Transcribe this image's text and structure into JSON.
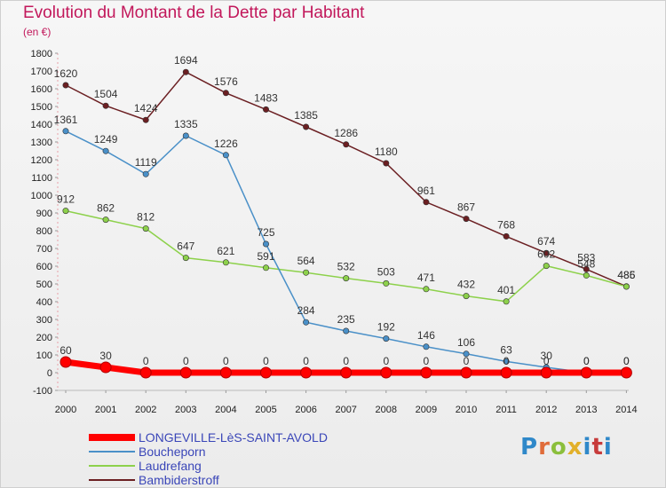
{
  "title": "Evolution du Montant de la Dette par Habitant",
  "subtitle": "(en €)",
  "chart_data": {
    "type": "line",
    "x": [
      "2000",
      "2001",
      "2002",
      "2003",
      "2004",
      "2005",
      "2006",
      "2007",
      "2008",
      "2009",
      "2010",
      "2011",
      "2012",
      "2013",
      "2014"
    ],
    "ylim": [
      -100,
      1800
    ],
    "yticks": [
      "-100",
      "0",
      "100",
      "200",
      "300",
      "400",
      "500",
      "600",
      "700",
      "800",
      "900",
      "1000",
      "1100",
      "1200",
      "1300",
      "1400",
      "1500",
      "1600",
      "1700",
      "1800"
    ],
    "grid": false,
    "legend_position": "bottom-left",
    "series": [
      {
        "name": "LONGEVILLE-LèS-SAINT-AVOLD",
        "color": "#ff0000",
        "values": [
          60,
          30,
          0,
          0,
          0,
          0,
          0,
          0,
          0,
          0,
          0,
          0,
          0,
          0,
          0
        ],
        "labels": [
          "60",
          "30",
          "0",
          "0",
          "0",
          "0",
          "0",
          "0",
          "0",
          "0",
          "0",
          "0",
          "0",
          "0",
          "0"
        ]
      },
      {
        "name": "Boucheporn",
        "color": "#4a90c8",
        "values": [
          1361,
          1249,
          1119,
          1335,
          1226,
          725,
          284,
          235,
          192,
          146,
          106,
          63,
          30,
          0,
          0
        ],
        "labels": [
          "1361",
          "1249",
          "1119",
          "1335",
          "1226",
          "725",
          "284",
          "235",
          "192",
          "146",
          "106",
          "63",
          "30",
          "0",
          "0"
        ]
      },
      {
        "name": "Laudrefang",
        "color": "#8dd14b",
        "values": [
          912,
          862,
          812,
          647,
          621,
          591,
          564,
          532,
          503,
          471,
          432,
          401,
          602,
          548,
          485
        ],
        "labels": [
          "912",
          "862",
          "812",
          "647",
          "621",
          "591",
          "564",
          "532",
          "503",
          "471",
          "432",
          "401",
          "602",
          "548",
          "485"
        ]
      },
      {
        "name": "Bambiderstroff",
        "color": "#6b1f22",
        "values": [
          1620,
          1504,
          1424,
          1694,
          1576,
          1483,
          1385,
          1286,
          1180,
          961,
          867,
          768,
          674,
          583,
          486
        ],
        "labels": [
          "1620",
          "1504",
          "1424",
          "1694",
          "1576",
          "1483",
          "1385",
          "1286",
          "1180",
          "961",
          "867",
          "768",
          "674",
          "583",
          "486"
        ]
      }
    ]
  },
  "logo": {
    "p": "P",
    "r": "r",
    "o": "o",
    "x": "x",
    "i": "i",
    "t": "t",
    "i2": "i"
  }
}
